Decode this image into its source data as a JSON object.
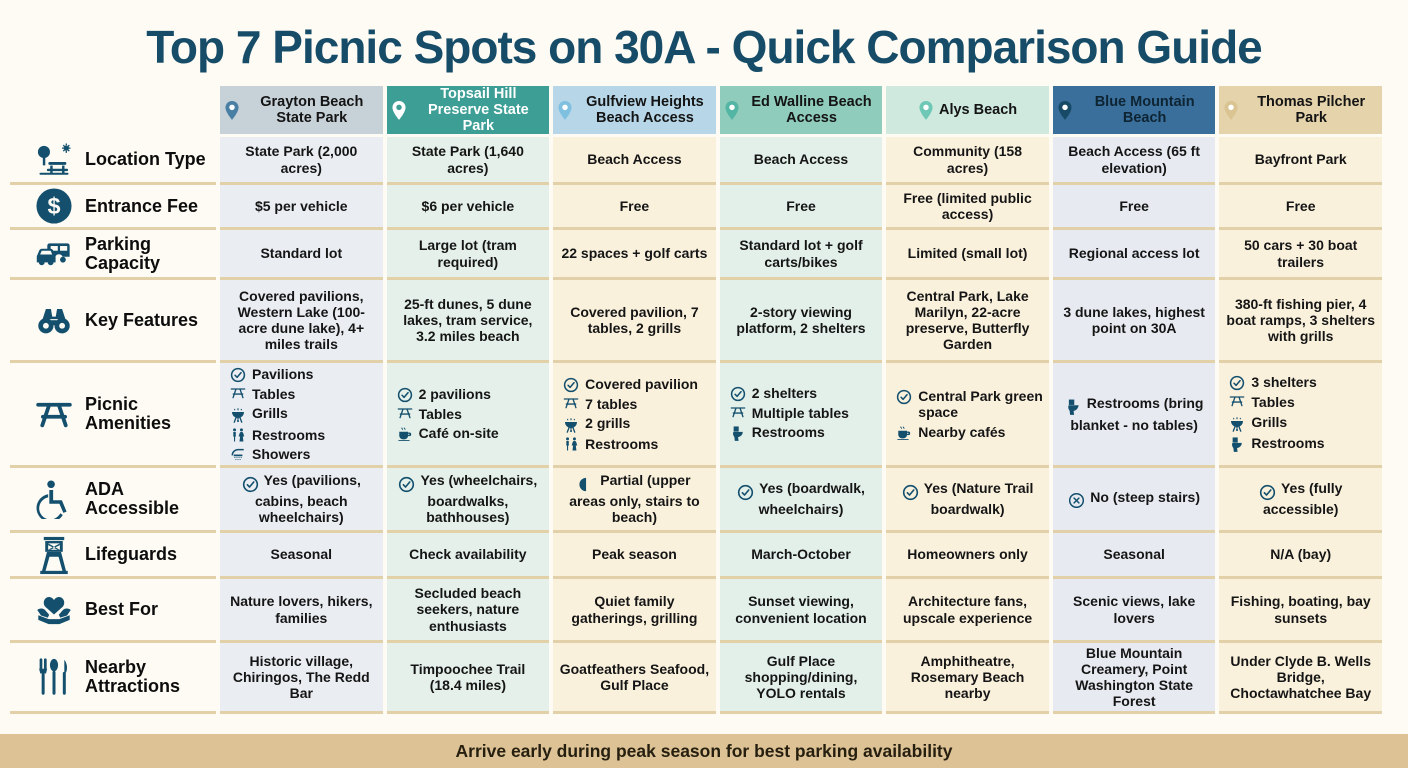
{
  "title": "Top 7 Picnic Spots on 30A - Quick Comparison Guide",
  "footer_note": "Arrive early during peak season for best parking availability",
  "colors": {
    "title_text": "#174c68",
    "row_icon": "#14506e",
    "footer_bg": "#dcc294",
    "separator_line": "#e2d0a8",
    "page_bg": "#fdfbf4"
  },
  "chart_data": {
    "type": "table",
    "title": "Top 7 Picnic Spots on 30A - Quick Comparison Guide",
    "footer_note": "Arrive early during peak season for best parking availability",
    "columns": [
      {
        "name": "Grayton Beach State Park",
        "header_bg": "#c7d1d8",
        "header_text": "#141414",
        "pin_color": "#4a7fa5",
        "pin_inner": "#ffffff",
        "cell_bg": "#eaedf2"
      },
      {
        "name": "Topsail Hill Preserve State Park",
        "header_bg": "#3d9e96",
        "header_text": "#ffffff",
        "pin_color": "#ffffff",
        "pin_inner": "#3d9e96",
        "cell_bg": "#e4f0e9"
      },
      {
        "name": "Gulfview Heights Beach Access",
        "header_bg": "#b7d7e8",
        "header_text": "#141414",
        "pin_color": "#7fc0e0",
        "pin_inner": "#ffffff",
        "cell_bg": "#faf1dd"
      },
      {
        "name": "Ed Walline Beach Access",
        "header_bg": "#8fccbb",
        "header_text": "#141414",
        "pin_color": "#53b5a4",
        "pin_inner": "#ffffff",
        "cell_bg": "#e3f0e9"
      },
      {
        "name": "Alys Beach",
        "header_bg": "#cfe9de",
        "header_text": "#141414",
        "pin_color": "#6fc7b6",
        "pin_inner": "#ffffff",
        "cell_bg": "#faf1dd"
      },
      {
        "name": "Blue Mountain Beach",
        "header_bg": "#3a6f9b",
        "header_text": "#0e2433",
        "pin_color": "#174a66",
        "pin_inner": "#ffffff",
        "cell_bg": "#e7ebf1"
      },
      {
        "name": "Thomas Pilcher Park",
        "header_bg": "#e5d3ab",
        "header_text": "#141414",
        "pin_color": "#d9c492",
        "pin_inner": "#ffffff",
        "cell_bg": "#faf1dd"
      }
    ],
    "rows": [
      {
        "label": "Location Type",
        "icon": "tree-bench-icon",
        "kind": "text",
        "cells": [
          "State Park (2,000 acres)",
          "State Park (1,640 acres)",
          "Beach Access",
          "Beach Access",
          "Community (158 acres)",
          "Beach Access (65 ft elevation)",
          "Bayfront Park"
        ]
      },
      {
        "label": "Entrance Fee",
        "icon": "dollar-circle-icon",
        "kind": "text",
        "cells": [
          "$5 per vehicle",
          "$6 per vehicle",
          "Free",
          "Free",
          "Free (limited public access)",
          "Free",
          "Free"
        ]
      },
      {
        "label": "Parking Capacity",
        "icon": "vehicles-icon",
        "kind": "text",
        "cells": [
          "Standard lot",
          "Large lot (tram required)",
          "22 spaces + golf carts",
          "Standard lot + golf carts/bikes",
          "Limited (small lot)",
          "Regional access lot",
          "50 cars + 30 boat trailers"
        ]
      },
      {
        "label": "Key Features",
        "icon": "binoculars-icon",
        "kind": "text",
        "cells": [
          "Covered pavilions, Western Lake (100-acre dune lake), 4+ miles trails",
          "25-ft dunes, 5 dune lakes, tram service, 3.2 miles beach",
          "Covered pavilion, 7 tables, 2 grills",
          "2-story viewing platform, 2 shelters",
          "Central Park, Lake Marilyn, 22-acre preserve, Butterfly Garden",
          "3 dune lakes, highest point on 30A",
          "380-ft fishing pier, 4 boat ramps, 3 shelters with grills"
        ]
      },
      {
        "label": "Picnic Amenities",
        "icon": "picnic-table-icon",
        "kind": "list",
        "cells": [
          [
            {
              "icon": "check-circle-icon",
              "text": "Pavilions"
            },
            {
              "icon": "table-icon",
              "text": "Tables"
            },
            {
              "icon": "grill-icon",
              "text": "Grills"
            },
            {
              "icon": "restroom-icon",
              "text": "Restrooms"
            },
            {
              "icon": "shower-icon",
              "text": "Showers"
            }
          ],
          [
            {
              "icon": "check-circle-icon",
              "text": "2 pavilions"
            },
            {
              "icon": "table-icon",
              "text": "Tables"
            },
            {
              "icon": "coffee-icon",
              "text": "Café on-site"
            }
          ],
          [
            {
              "icon": "check-circle-icon",
              "text": "Covered pavilion"
            },
            {
              "icon": "table-icon",
              "text": "7 tables"
            },
            {
              "icon": "grill-icon",
              "text": "2 grills"
            },
            {
              "icon": "restroom-icon",
              "text": "Restrooms"
            }
          ],
          [
            {
              "icon": "check-circle-icon",
              "text": "2 shelters"
            },
            {
              "icon": "table-icon",
              "text": "Multiple tables"
            },
            {
              "icon": "toilet-icon",
              "text": "Restrooms"
            }
          ],
          [
            {
              "icon": "check-circle-icon",
              "text": "Central Park green space"
            },
            {
              "icon": "coffee-icon",
              "text": "Nearby cafés"
            }
          ],
          [
            {
              "icon": "toilet-icon",
              "text": "Restrooms (bring blanket - no tables)"
            }
          ],
          [
            {
              "icon": "check-circle-icon",
              "text": "3 shelters"
            },
            {
              "icon": "table-icon",
              "text": "Tables"
            },
            {
              "icon": "grill-icon",
              "text": "Grills"
            },
            {
              "icon": "toilet-icon",
              "text": "Restrooms"
            }
          ]
        ]
      },
      {
        "label": "ADA Accessible",
        "icon": "wheelchair-icon",
        "kind": "badge",
        "cells": [
          {
            "icon": "check-circle-icon",
            "text": "Yes (pavilions, cabins, beach wheelchairs)"
          },
          {
            "icon": "check-circle-icon",
            "text": "Yes (wheelchairs, boardwalks, bathhouses)"
          },
          {
            "icon": "half-circle-icon",
            "text": "Partial (upper areas only, stairs to beach)"
          },
          {
            "icon": "check-circle-icon",
            "text": "Yes (boardwalk, wheelchairs)"
          },
          {
            "icon": "check-circle-icon",
            "text": "Yes (Nature Trail boardwalk)"
          },
          {
            "icon": "x-circle-icon",
            "text": "No (steep stairs)"
          },
          {
            "icon": "check-circle-icon",
            "text": "Yes (fully accessible)"
          }
        ]
      },
      {
        "label": "Lifeguards",
        "icon": "lifeguard-tower-icon",
        "kind": "text",
        "cells": [
          "Seasonal",
          "Check availability",
          "Peak season",
          "March-October",
          "Homeowners only",
          "Seasonal",
          "N/A (bay)"
        ]
      },
      {
        "label": "Best For",
        "icon": "heart-hands-icon",
        "kind": "text",
        "cells": [
          "Nature lovers, hikers, families",
          "Secluded beach seekers, nature enthusiasts",
          "Quiet family gatherings, grilling",
          "Sunset viewing, convenient location",
          "Architecture fans, upscale experience",
          "Scenic views, lake lovers",
          "Fishing, boating, bay sunsets"
        ]
      },
      {
        "label": "Nearby Attractions",
        "icon": "utensils-icon",
        "kind": "text",
        "cells": [
          "Historic village, Chiringos, The Redd Bar",
          "Timpoochee Trail (18.4 miles)",
          "Goatfeathers Seafood, Gulf Place",
          "Gulf Place shopping/dining, YOLO rentals",
          "Amphitheatre, Rosemary Beach nearby",
          "Blue Mountain Creamery, Point Washington State Forest",
          "Under Clyde B. Wells Bridge, Choctawhatchee Bay"
        ]
      }
    ]
  }
}
